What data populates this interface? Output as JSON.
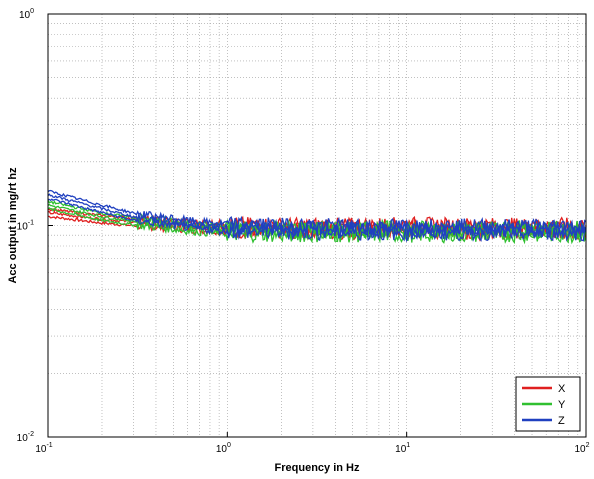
{
  "chart_data": {
    "type": "line",
    "title": "",
    "xlabel": "Frequency in Hz",
    "ylabel": "Acc output in mg/rt hz",
    "xscale": "log",
    "yscale": "log",
    "xlim": [
      0.1,
      100
    ],
    "ylim": [
      0.01,
      1
    ],
    "grid": true,
    "grid_style": "dotted",
    "x_ticks": [
      {
        "value": 0.1,
        "base": "10",
        "exp": "-1"
      },
      {
        "value": 1,
        "base": "10",
        "exp": "0"
      },
      {
        "value": 10,
        "base": "10",
        "exp": "1"
      },
      {
        "value": 100,
        "base": "10",
        "exp": "2"
      }
    ],
    "y_ticks": [
      {
        "value": 0.01,
        "base": "10",
        "exp": "-2"
      },
      {
        "value": 0.1,
        "base": "10",
        "exp": "-1"
      },
      {
        "value": 1,
        "base": "10",
        "exp": "0"
      }
    ],
    "legend_position": "bottom-right",
    "series": [
      {
        "name": "X",
        "color": "#e02020",
        "x": [
          0.1,
          0.2,
          0.3,
          0.5,
          0.7,
          1,
          2,
          5,
          10,
          20,
          50,
          100
        ],
        "y": [
          0.115,
          0.107,
          0.104,
          0.101,
          0.099,
          0.098,
          0.097,
          0.097,
          0.098,
          0.097,
          0.097,
          0.097
        ]
      },
      {
        "name": "Y",
        "color": "#30c030",
        "x": [
          0.1,
          0.2,
          0.3,
          0.5,
          0.7,
          1,
          2,
          5,
          10,
          20,
          50,
          100
        ],
        "y": [
          0.125,
          0.11,
          0.105,
          0.1,
          0.097,
          0.095,
          0.094,
          0.094,
          0.094,
          0.094,
          0.094,
          0.094
        ]
      },
      {
        "name": "Z",
        "color": "#2040c0",
        "x": [
          0.1,
          0.2,
          0.3,
          0.5,
          0.7,
          1,
          2,
          5,
          10,
          20,
          50,
          100
        ],
        "y": [
          0.14,
          0.12,
          0.11,
          0.104,
          0.1,
          0.098,
          0.097,
          0.096,
          0.096,
          0.096,
          0.096,
          0.096
        ]
      }
    ]
  }
}
